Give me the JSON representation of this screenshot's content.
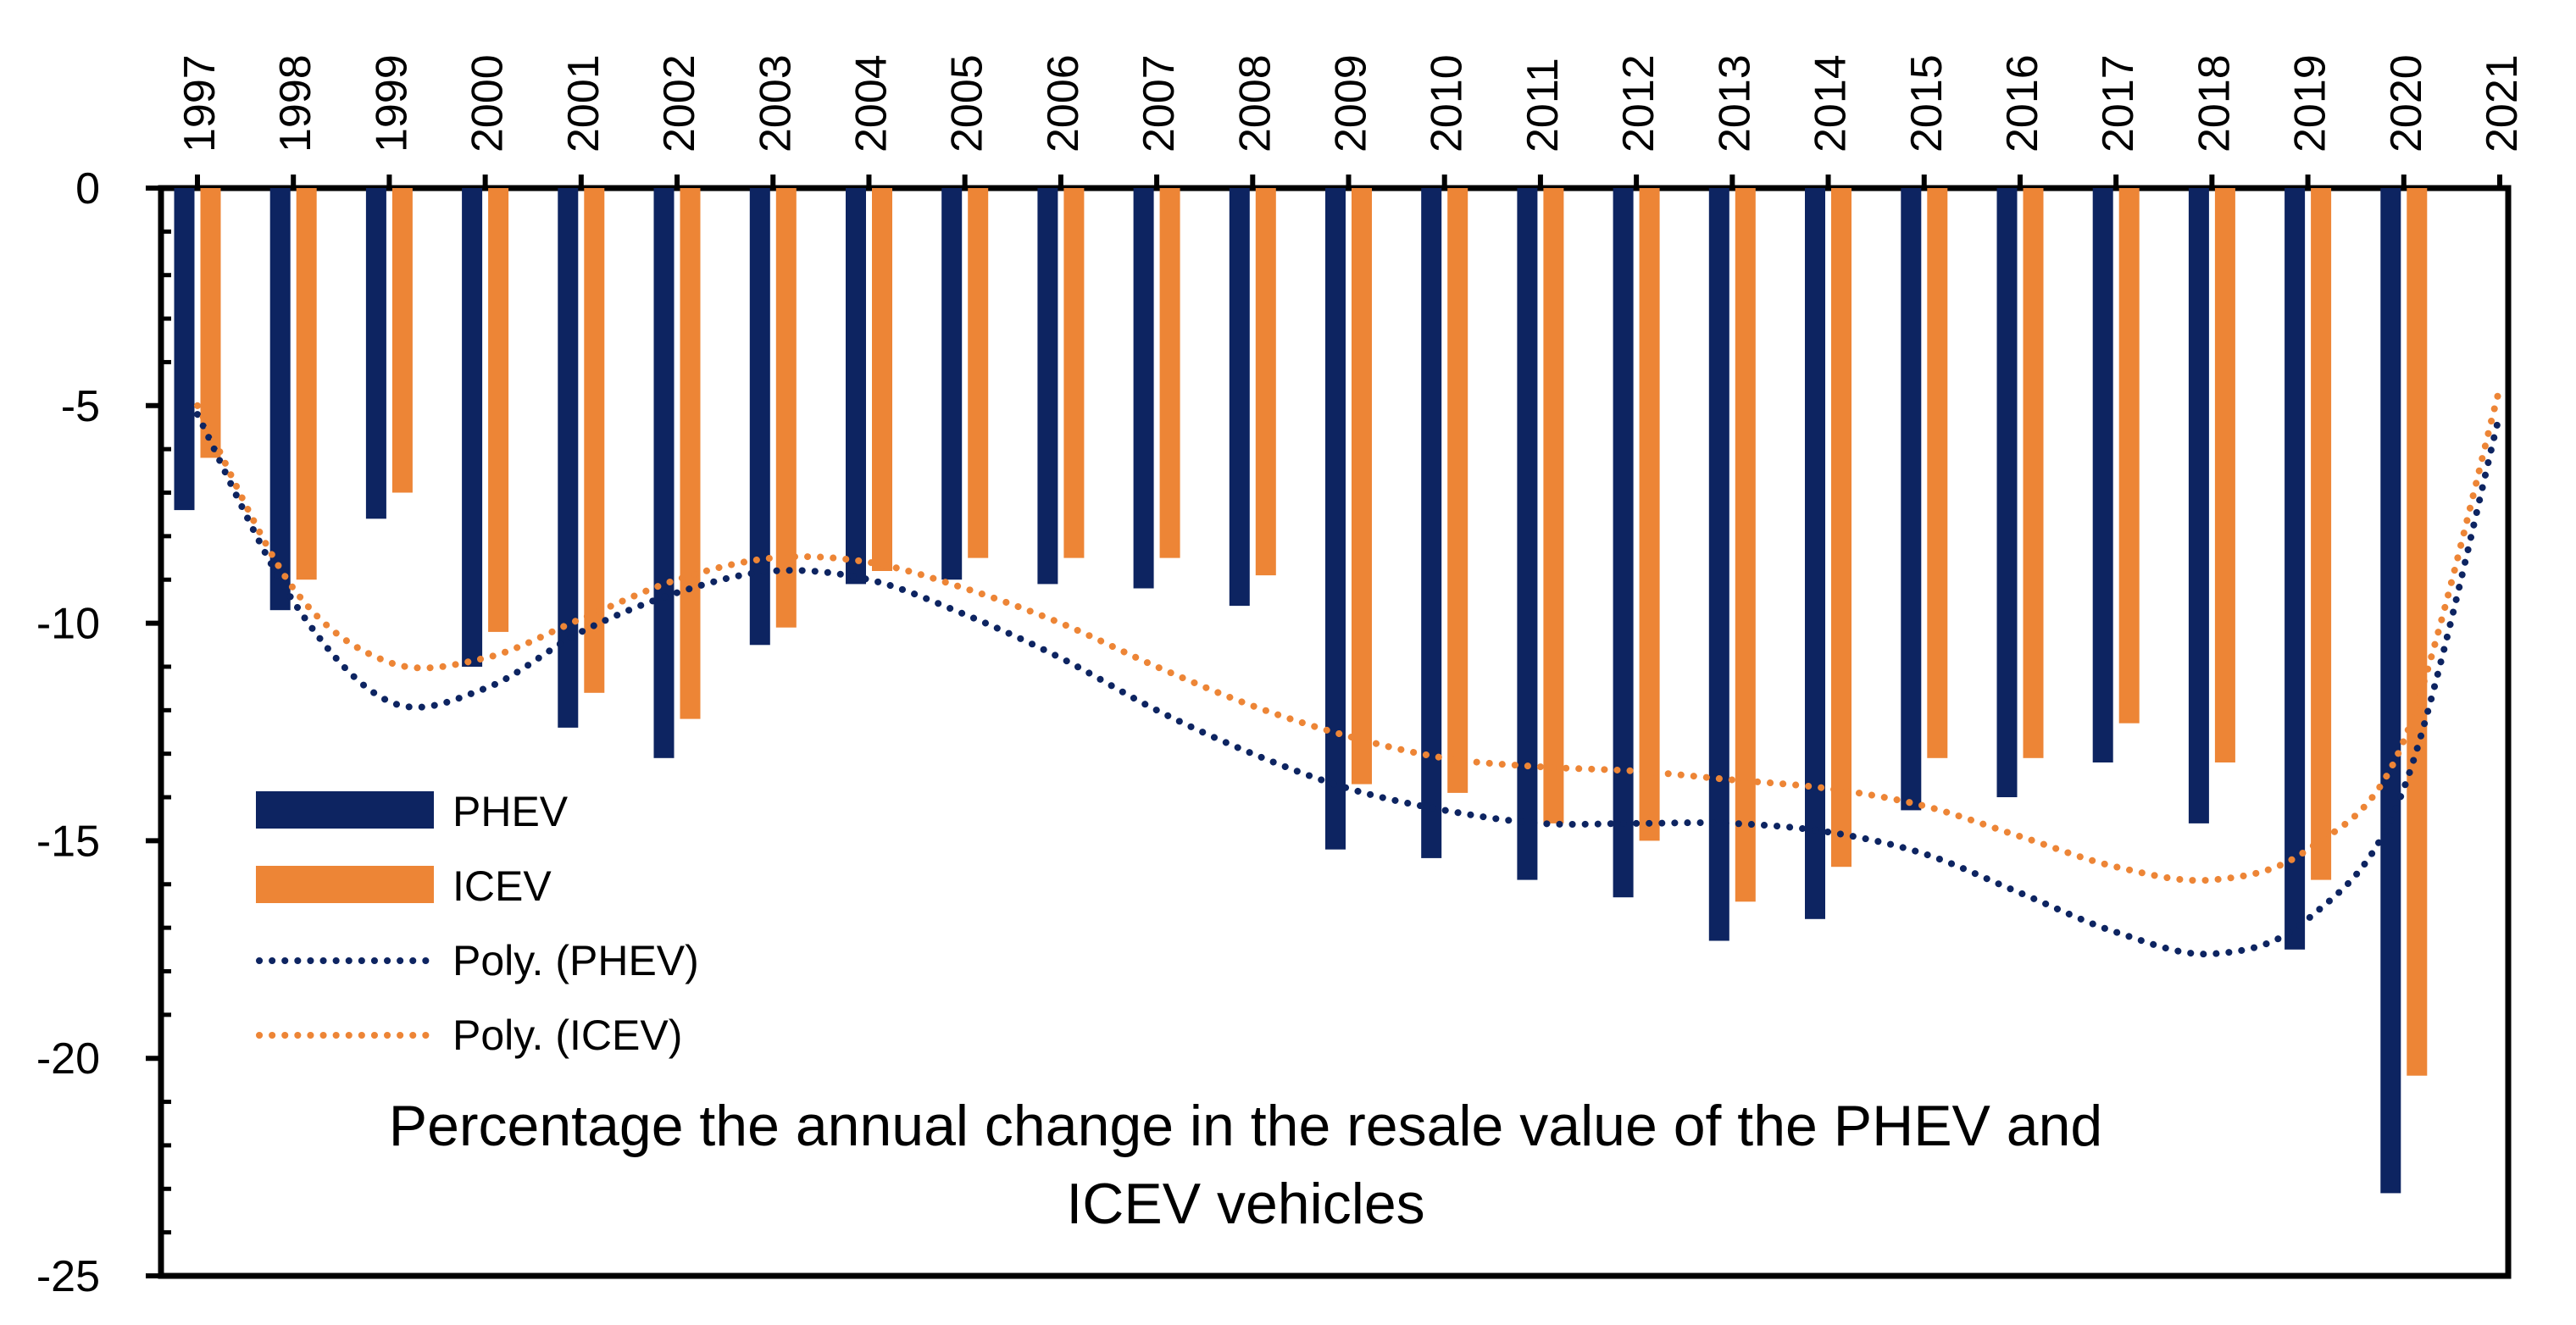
{
  "chart_data": {
    "type": "bar",
    "title": "Percentage the annual change in the resale value of the PHEV and ICEV vehicles",
    "title_lines": [
      "Percentage the annual change in the resale value of the PHEV and",
      "ICEV vehicles"
    ],
    "categories": [
      "1997",
      "1998",
      "1999",
      "2000",
      "2001",
      "2002",
      "2003",
      "2004",
      "2005",
      "2006",
      "2007",
      "2008",
      "2009",
      "2010",
      "2011",
      "2012",
      "2013",
      "2014",
      "2015",
      "2016",
      "2017",
      "2018",
      "2019",
      "2020",
      "2021"
    ],
    "series": [
      {
        "name": "PHEV",
        "color": "#0d2461",
        "values": [
          -7.4,
          -9.7,
          -7.6,
          -11.0,
          -12.4,
          -13.1,
          -10.5,
          -9.1,
          -9.0,
          -9.1,
          -9.2,
          -9.6,
          -15.2,
          -15.4,
          -15.9,
          -16.3,
          -17.3,
          -16.8,
          -14.3,
          -14.0,
          -13.2,
          -14.6,
          -17.5,
          -23.1,
          null
        ]
      },
      {
        "name": "ICEV",
        "color": "#ed8536",
        "values": [
          -6.2,
          -9.0,
          -7.0,
          -10.2,
          -11.6,
          -12.2,
          -10.1,
          -8.8,
          -8.5,
          -8.5,
          -8.5,
          -8.9,
          -13.7,
          -13.9,
          -14.6,
          -15.0,
          -16.4,
          -15.6,
          -13.1,
          -13.1,
          -12.3,
          -13.2,
          -15.9,
          -20.4,
          null
        ]
      }
    ],
    "trendlines": [
      {
        "name": "Poly. (PHEV)",
        "color": "#0d2461",
        "x": [
          "1997",
          "1998",
          "1999",
          "2000",
          "2001",
          "2002",
          "2003",
          "2004",
          "2005",
          "2006",
          "2007",
          "2008",
          "2009",
          "2010",
          "2011",
          "2012",
          "2013",
          "2014",
          "2015",
          "2016",
          "2017",
          "2018",
          "2019",
          "2020",
          "2021"
        ],
        "values": [
          -5.2,
          -9.5,
          -11.8,
          -11.5,
          -10.2,
          -9.3,
          -8.8,
          -9.0,
          -9.8,
          -10.8,
          -12.0,
          -13.0,
          -13.8,
          -14.3,
          -14.6,
          -14.6,
          -14.6,
          -14.8,
          -15.3,
          -16.2,
          -17.1,
          -17.6,
          -16.8,
          -13.8,
          -5.2
        ]
      },
      {
        "name": "Poly. (ICEV)",
        "color": "#ed8536",
        "values": [
          -5.0,
          -9.2,
          -10.9,
          -10.8,
          -9.9,
          -9.0,
          -8.5,
          -8.6,
          -9.2,
          -10.0,
          -11.0,
          -11.9,
          -12.6,
          -13.1,
          -13.3,
          -13.4,
          -13.6,
          -13.8,
          -14.2,
          -14.9,
          -15.6,
          -15.9,
          -15.2,
          -12.7,
          -4.6
        ]
      }
    ],
    "legend": [
      "PHEV",
      "ICEV",
      "Poly. (PHEV)",
      "Poly. (ICEV)"
    ],
    "legend_position": "left-middle",
    "yticks": [
      0,
      -5,
      -10,
      -15,
      -20,
      -25
    ],
    "ylim": [
      -25,
      0
    ],
    "xlabel": "",
    "ylabel": "",
    "x_axis_position": "top",
    "grid": false
  }
}
